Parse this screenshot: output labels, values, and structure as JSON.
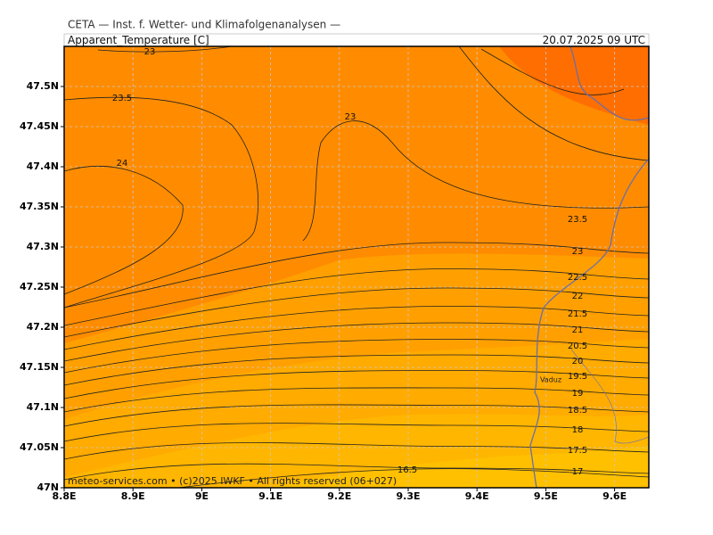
{
  "header": {
    "source": "CETA — Inst. f. Wetter- und Klimafolgenanalysen —",
    "variable": "Apparent_Temperature [C]",
    "date": "20.07.2025 09 UTC"
  },
  "axes": {
    "x_labels": [
      "8.8E",
      "8.9E",
      "9E",
      "9.1E",
      "9.2E",
      "9.3E",
      "9.4E",
      "9.5E",
      "9.6E"
    ],
    "y_labels": [
      "47N",
      "47.05N",
      "47.1N",
      "47.15N",
      "47.2N",
      "47.25N",
      "47.3N",
      "47.35N",
      "47.4N",
      "47.45N",
      "47.5N"
    ]
  },
  "contour_labels": [
    "23",
    "23.5",
    "24",
    "23",
    "23.5",
    "23",
    "22.5",
    "22",
    "21.5",
    "21",
    "20.5",
    "20",
    "19.5",
    "19",
    "18.5",
    "18",
    "17.5",
    "17",
    "16.5"
  ],
  "place": "Vaduz",
  "footer": "meteo-services.com • (c)2025 IWKF • All rights reserved (06+027)"
}
